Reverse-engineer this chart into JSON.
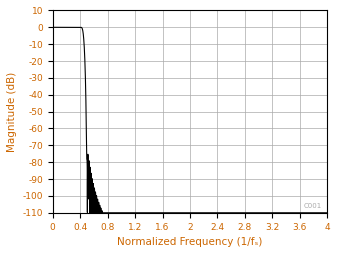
{
  "title": "",
  "xlabel": "Normalized Frequency (1/fₛ)",
  "ylabel": "Magnitude (dB)",
  "xlim": [
    0,
    4
  ],
  "ylim": [
    -110,
    10
  ],
  "xticks": [
    0,
    0.4,
    0.8,
    1.2,
    1.6,
    2.0,
    2.4,
    2.8,
    3.2,
    3.6,
    4.0
  ],
  "yticks": [
    10,
    0,
    -10,
    -20,
    -30,
    -40,
    -50,
    -60,
    -70,
    -80,
    -90,
    -100,
    -110
  ],
  "line_color": "#000000",
  "grid_color": "#aaaaaa",
  "axis_label_color": "#cc6600",
  "tick_label_color": "#cc6600",
  "bg_color": "#ffffff",
  "watermark": "C001",
  "watermark_color": "#aaaaaa"
}
